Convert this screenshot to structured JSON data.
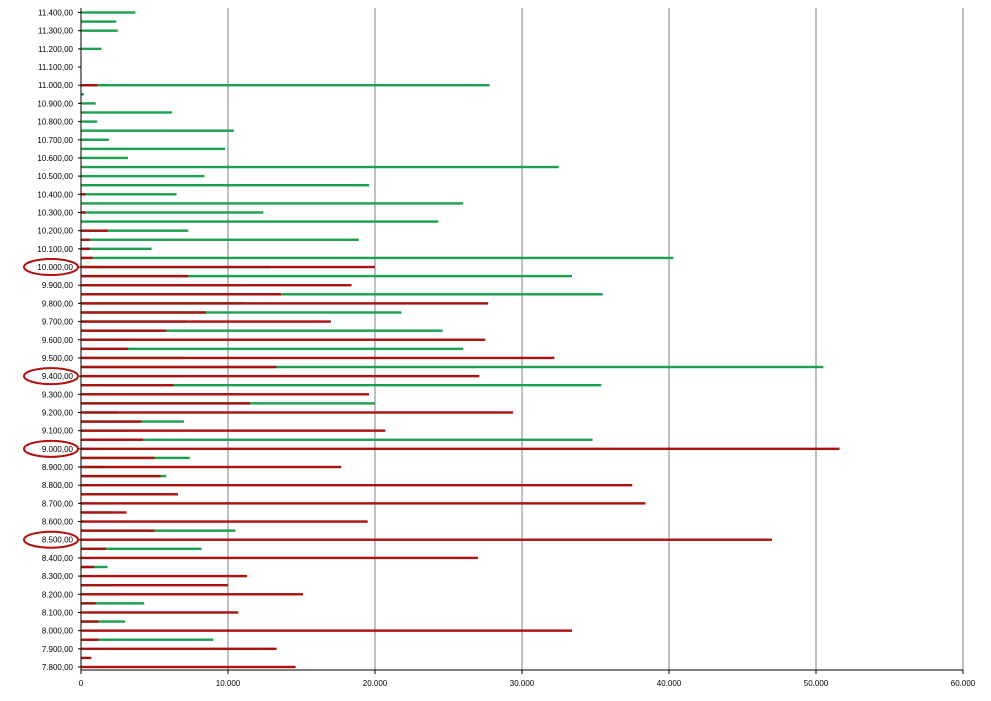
{
  "chart_data": {
    "type": "bar",
    "orientation": "horizontal",
    "title": "",
    "xlabel": "",
    "ylabel": "",
    "xlim": [
      0,
      60000
    ],
    "x_ticks": [
      0,
      10000,
      20000,
      30000,
      40000,
      50000,
      60000
    ],
    "x_tick_labels": [
      "0",
      "10.000",
      "20.000",
      "30.000",
      "40.000",
      "50.000",
      "60.000"
    ],
    "y_tick_labels": [
      "11.400,00",
      "11.300,00",
      "11.200,00",
      "11.100,00",
      "11.000,00",
      "10.900,00",
      "10.800,00",
      "10.700,00",
      "10.600,00",
      "10.500,00",
      "10.400,00",
      "10.300,00",
      "10.200,00",
      "10.100,00",
      "10.000,00",
      "9.900,00",
      "9.800,00",
      "9.700,00",
      "9.600,00",
      "9.500,00",
      "9.400,00",
      "9.300,00",
      "9.200,00",
      "9.100,00",
      "9.000,00",
      "8.900,00",
      "8.800,00",
      "8.700,00",
      "8.600,00",
      "8.500,00",
      "8.400,00",
      "8.300,00",
      "8.200,00",
      "8.100,00",
      "8.000,00",
      "7.900,00",
      "7.800,00"
    ],
    "highlighted_labels": [
      "10.000,00",
      "9.400,00",
      "9.000,00",
      "8.500,00"
    ],
    "grid": "vertical",
    "legend": "none",
    "colors": {
      "series_green": "#1e9e50",
      "series_red": "#aa1111",
      "highlight_ring": "#b01010",
      "gridline": "#808080",
      "axis": "#000000"
    },
    "series": [
      {
        "color": "series_green",
        "bars": [
          [
            11400,
            3700
          ],
          [
            11350,
            2400
          ],
          [
            11300,
            2500
          ],
          [
            11200,
            1400
          ],
          [
            11000,
            27800
          ],
          [
            10950,
            200
          ],
          [
            10900,
            1000
          ],
          [
            10850,
            6200
          ],
          [
            10800,
            1100
          ],
          [
            10750,
            10400
          ],
          [
            10700,
            1900
          ],
          [
            10650,
            9800
          ],
          [
            10600,
            3200
          ],
          [
            10550,
            32500
          ],
          [
            10500,
            8400
          ],
          [
            10450,
            19600
          ],
          [
            10400,
            6500
          ],
          [
            10350,
            26000
          ],
          [
            10300,
            12400
          ],
          [
            10250,
            24300
          ],
          [
            10200,
            7300
          ],
          [
            10150,
            18900
          ],
          [
            10100,
            4800
          ],
          [
            10050,
            40300
          ],
          [
            10000,
            12900
          ],
          [
            9950,
            33400
          ],
          [
            9900,
            11200
          ],
          [
            9850,
            35500
          ],
          [
            9800,
            11100
          ],
          [
            9750,
            21800
          ],
          [
            9700,
            7100
          ],
          [
            9650,
            24600
          ],
          [
            9600,
            3700
          ],
          [
            9550,
            26000
          ],
          [
            9500,
            7000
          ],
          [
            9450,
            50500
          ],
          [
            9400,
            6900
          ],
          [
            9350,
            35400
          ],
          [
            9300,
            10600
          ],
          [
            9250,
            20000
          ],
          [
            9200,
            2500
          ],
          [
            9150,
            7000
          ],
          [
            9100,
            3100
          ],
          [
            9050,
            34800
          ],
          [
            9000,
            800
          ],
          [
            8950,
            7400
          ],
          [
            8900,
            1600
          ],
          [
            8850,
            5800
          ],
          [
            8800,
            800
          ],
          [
            8750,
            5500
          ],
          [
            8700,
            300
          ],
          [
            8650,
            2100
          ],
          [
            8600,
            200
          ],
          [
            8550,
            10500
          ],
          [
            8500,
            200
          ],
          [
            8450,
            8200
          ],
          [
            8400,
            100
          ],
          [
            8350,
            1800
          ],
          [
            8250,
            2100
          ],
          [
            8200,
            2300
          ],
          [
            8150,
            4300
          ],
          [
            8050,
            3000
          ],
          [
            7950,
            9000
          ]
        ]
      },
      {
        "color": "series_red",
        "bars": [
          [
            11000,
            1100
          ],
          [
            10400,
            300
          ],
          [
            10300,
            300
          ],
          [
            10200,
            1800
          ],
          [
            10150,
            600
          ],
          [
            10100,
            600
          ],
          [
            10050,
            800
          ],
          [
            10000,
            20000
          ],
          [
            9950,
            7300
          ],
          [
            9900,
            18400
          ],
          [
            9850,
            13600
          ],
          [
            9800,
            27700
          ],
          [
            9750,
            8500
          ],
          [
            9700,
            17000
          ],
          [
            9650,
            5800
          ],
          [
            9600,
            27500
          ],
          [
            9550,
            3200
          ],
          [
            9500,
            32200
          ],
          [
            9450,
            13300
          ],
          [
            9400,
            27100
          ],
          [
            9350,
            6300
          ],
          [
            9300,
            19600
          ],
          [
            9250,
            11500
          ],
          [
            9200,
            29400
          ],
          [
            9150,
            4100
          ],
          [
            9100,
            20700
          ],
          [
            9050,
            4200
          ],
          [
            9000,
            51600
          ],
          [
            8950,
            5000
          ],
          [
            8900,
            17700
          ],
          [
            8850,
            5400
          ],
          [
            8800,
            37500
          ],
          [
            8750,
            6600
          ],
          [
            8700,
            38400
          ],
          [
            8650,
            3100
          ],
          [
            8600,
            19500
          ],
          [
            8550,
            5000
          ],
          [
            8500,
            47000
          ],
          [
            8450,
            1700
          ],
          [
            8400,
            27000
          ],
          [
            8350,
            900
          ],
          [
            8300,
            11300
          ],
          [
            8250,
            10000
          ],
          [
            8200,
            15100
          ],
          [
            8150,
            1000
          ],
          [
            8100,
            10700
          ],
          [
            8050,
            1200
          ],
          [
            8000,
            33400
          ],
          [
            7950,
            1200
          ],
          [
            7900,
            13300
          ],
          [
            7850,
            700
          ],
          [
            7800,
            14600
          ]
        ]
      }
    ]
  }
}
